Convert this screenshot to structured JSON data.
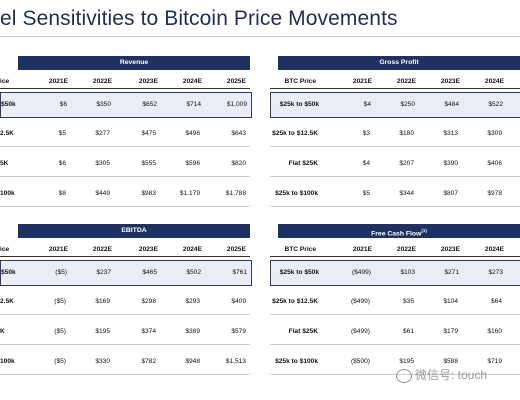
{
  "page_title": "el Sensitivities to Bitcoin Price Movements",
  "years": [
    "2021E",
    "2022E",
    "2023E",
    "2024E",
    "2025E"
  ],
  "panels": {
    "revenue": {
      "title": "Revenue",
      "label_header": "ice",
      "rows": [
        {
          "label": "$50k",
          "values": [
            "$6",
            "$350",
            "$652",
            "$714",
            "$1,009"
          ]
        },
        {
          "label": "2.5K",
          "values": [
            "$5",
            "$277",
            "$475",
            "$496",
            "$643"
          ]
        },
        {
          "label": "5K",
          "values": [
            "$6",
            "$305",
            "$555",
            "$596",
            "$820"
          ]
        },
        {
          "label": "100k",
          "values": [
            "$8",
            "$449",
            "$983",
            "$1,179",
            "$1,788"
          ]
        }
      ]
    },
    "gross_profit": {
      "title": "Gross Profit",
      "label_header": "BTC Price",
      "years": [
        "2021E",
        "2022E",
        "2023E",
        "2024E"
      ],
      "rows": [
        {
          "label": "$25k to $50k",
          "values": [
            "$4",
            "$250",
            "$484",
            "$522"
          ]
        },
        {
          "label": "$25k to $12.5K",
          "values": [
            "$3",
            "$180",
            "$313",
            "$309"
          ]
        },
        {
          "label": "Flat $25K",
          "values": [
            "$4",
            "$207",
            "$390",
            "$406"
          ]
        },
        {
          "label": "$25k to $100k",
          "values": [
            "$5",
            "$344",
            "$807",
            "$978"
          ]
        }
      ]
    },
    "ebitda": {
      "title": "EBITDA",
      "label_header": "ice",
      "rows": [
        {
          "label": "$50k",
          "values": [
            "($5)",
            "$237",
            "$465",
            "$502",
            "$761"
          ]
        },
        {
          "label": "2.5K",
          "values": [
            "($5)",
            "$169",
            "$298",
            "$293",
            "$409"
          ]
        },
        {
          "label": "K",
          "values": [
            "($5)",
            "$195",
            "$374",
            "$389",
            "$579"
          ]
        },
        {
          "label": "100k",
          "values": [
            "($5)",
            "$330",
            "$782",
            "$948",
            "$1,513"
          ]
        }
      ]
    },
    "free_cash_flow": {
      "title": "Free Cash Flow",
      "title_sup": "(1)",
      "label_header": "BTC Price",
      "years": [
        "2021E",
        "2022E",
        "2023E",
        "2024E"
      ],
      "rows": [
        {
          "label": "$25k to $50k",
          "values": [
            "($499)",
            "$103",
            "$271",
            "$273"
          ]
        },
        {
          "label": "$25k to $12.5K",
          "values": [
            "($499)",
            "$35",
            "$104",
            "$64"
          ]
        },
        {
          "label": "Flat $25K",
          "values": [
            "($499)",
            "$61",
            "$179",
            "$160"
          ]
        },
        {
          "label": "$25k to $100k",
          "values": [
            "($500)",
            "$195",
            "$588",
            "$719"
          ]
        }
      ]
    }
  },
  "watermark": "微信号: touch"
}
